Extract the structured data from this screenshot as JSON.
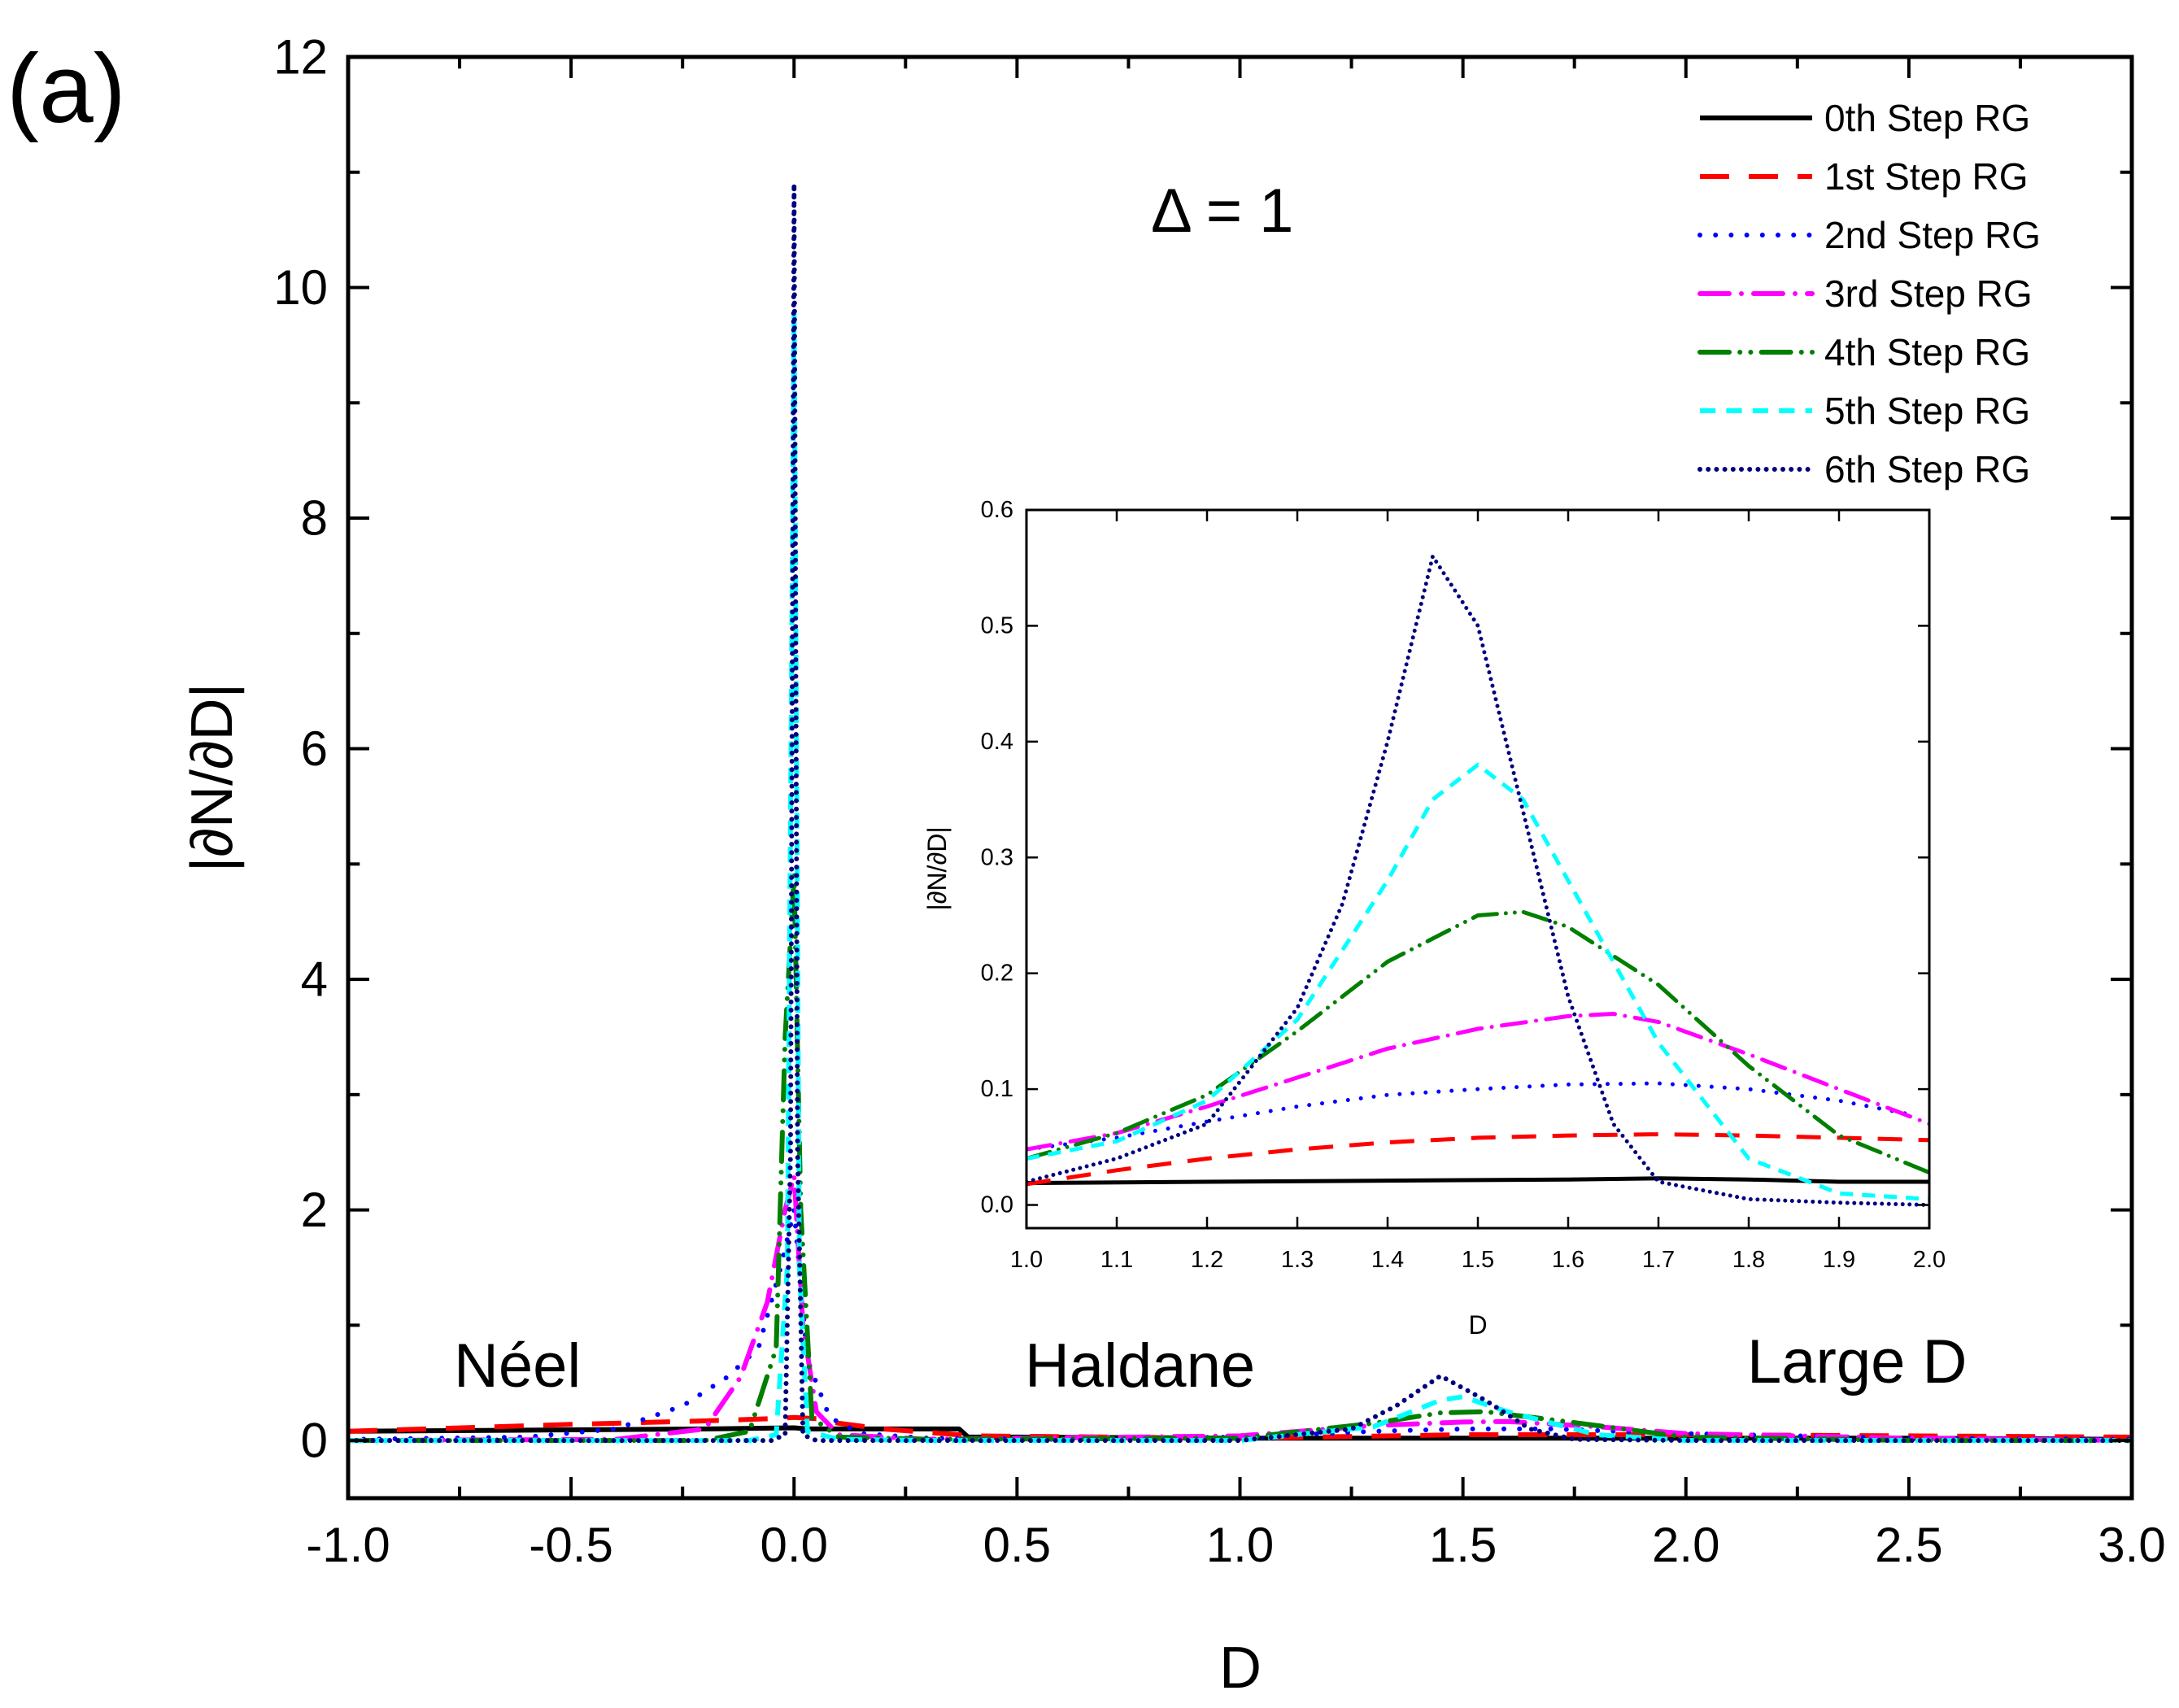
{
  "panel_label": "(a)",
  "annotation_delta": "Δ = 1",
  "phase_labels": [
    "Néel",
    "Haldane",
    "Large D"
  ],
  "colors": {
    "s0": "#000000",
    "s1": "#ff0000",
    "s2": "#0000ff",
    "s3": "#ff00ff",
    "s4": "#007f00",
    "s5": "#00ffff",
    "s6": "#00007f"
  },
  "chart_data": [
    {
      "id": "main",
      "type": "line",
      "title": "",
      "xlabel": "D",
      "ylabel": "|∂N/∂D|",
      "xlim": [
        -1.0,
        3.0
      ],
      "ylim": [
        -0.5,
        12
      ],
      "xticks": [
        -1.0,
        -0.5,
        0.0,
        0.5,
        1.0,
        1.5,
        2.0,
        2.5,
        3.0
      ],
      "xtick_labels": [
        "-1.0",
        "-0.5",
        "0.0",
        "0.5",
        "1.0",
        "1.5",
        "2.0",
        "2.5",
        "3.0"
      ],
      "yticks": [
        0,
        2,
        4,
        6,
        8,
        10,
        12
      ],
      "ytick_labels": [
        "0",
        "2",
        "4",
        "6",
        "8",
        "10",
        "12"
      ],
      "legend_position": "top-right",
      "series": [
        {
          "name": "0th  Step RG",
          "style": "solid",
          "color_key": "s0",
          "x": [
            -1.0,
            -0.6,
            -0.2,
            0.0,
            0.03,
            0.3,
            0.37,
            0.39,
            0.5,
            1.0,
            1.5,
            2.0,
            2.5,
            3.0
          ],
          "y": [
            0.08,
            0.09,
            0.1,
            0.11,
            0.1,
            0.1,
            0.1,
            0.03,
            0.03,
            0.02,
            0.02,
            0.02,
            0.02,
            0.01
          ]
        },
        {
          "name": "1st  Step RG",
          "style": "dash",
          "color_key": "s1",
          "x": [
            -1.0,
            -0.5,
            -0.2,
            -0.05,
            0.0,
            0.05,
            0.1,
            0.2,
            0.4,
            1.0,
            1.5,
            2.0,
            2.5,
            3.0
          ],
          "y": [
            0.08,
            0.14,
            0.17,
            0.19,
            0.2,
            0.19,
            0.15,
            0.1,
            0.04,
            0.02,
            0.05,
            0.05,
            0.04,
            0.03
          ]
        },
        {
          "name": "2nd Step RG",
          "style": "dot",
          "color_key": "s2",
          "x": [
            -1.0,
            -0.6,
            -0.4,
            -0.25,
            -0.15,
            -0.08,
            -0.03,
            0.0,
            0.03,
            0.08,
            0.15,
            0.3,
            0.6,
            1.0,
            1.3,
            1.5,
            1.7,
            2.0,
            2.5,
            3.0
          ],
          "y": [
            0.01,
            0.03,
            0.1,
            0.3,
            0.55,
            0.8,
            1.5,
            2.0,
            0.7,
            0.2,
            0.06,
            0.02,
            0.01,
            0.03,
            0.08,
            0.1,
            0.1,
            0.06,
            0.02,
            0.01
          ]
        },
        {
          "name": "3rd  Step RG",
          "style": "dashdot",
          "color_key": "s3",
          "x": [
            -1.0,
            -0.4,
            -0.2,
            -0.12,
            -0.06,
            -0.02,
            0.0,
            0.02,
            0.05,
            0.1,
            0.3,
            1.0,
            1.3,
            1.5,
            1.6,
            1.8,
            2.0,
            2.5,
            3.0
          ],
          "y": [
            0.0,
            0.01,
            0.1,
            0.55,
            1.2,
            2.0,
            2.3,
            1.0,
            0.25,
            0.05,
            0.01,
            0.04,
            0.13,
            0.16,
            0.165,
            0.12,
            0.06,
            0.02,
            0.0
          ]
        },
        {
          "name": "4th  Step RG",
          "style": "dashdotdot",
          "color_key": "s4",
          "x": [
            -1.0,
            -0.2,
            -0.1,
            -0.04,
            -0.02,
            0.0,
            0.015,
            0.04,
            0.1,
            0.3,
            1.0,
            1.3,
            1.45,
            1.55,
            1.7,
            2.0,
            2.5,
            3.0
          ],
          "y": [
            0.0,
            0.0,
            0.08,
            0.8,
            3.5,
            4.9,
            2.0,
            0.2,
            0.03,
            0.01,
            0.02,
            0.15,
            0.24,
            0.25,
            0.18,
            0.03,
            0.0,
            0.0
          ]
        },
        {
          "name": "5th  Step RG",
          "style": "shortdash",
          "color_key": "s5",
          "x": [
            -1.0,
            -0.1,
            -0.04,
            -0.015,
            0.0,
            0.012,
            0.03,
            0.1,
            0.3,
            1.0,
            1.3,
            1.45,
            1.5,
            1.6,
            1.8,
            2.0,
            2.5,
            3.0
          ],
          "y": [
            0.0,
            0.0,
            0.05,
            1.5,
            9.8,
            1.5,
            0.08,
            0.01,
            0.0,
            0.0,
            0.12,
            0.35,
            0.38,
            0.25,
            0.05,
            0.0,
            0.0,
            0.0
          ]
        },
        {
          "name": "6th  Step RG",
          "style": "densedot",
          "color_key": "s6",
          "x": [
            -1.0,
            -0.05,
            -0.02,
            -0.008,
            0.0,
            0.008,
            0.02,
            0.05,
            1.0,
            1.25,
            1.35,
            1.45,
            1.55,
            1.65,
            1.75,
            2.0,
            3.0
          ],
          "y": [
            0.0,
            0.0,
            0.05,
            2.5,
            10.9,
            2.5,
            0.05,
            0.0,
            0.0,
            0.1,
            0.3,
            0.56,
            0.35,
            0.1,
            0.01,
            0.0,
            0.0
          ]
        }
      ]
    },
    {
      "id": "inset",
      "type": "line",
      "title": "",
      "xlabel": "D",
      "ylabel": "|∂N/∂D|",
      "xlim": [
        1.0,
        2.0
      ],
      "ylim": [
        -0.02,
        0.6
      ],
      "xticks": [
        1.0,
        1.1,
        1.2,
        1.3,
        1.4,
        1.5,
        1.6,
        1.7,
        1.8,
        1.9,
        2.0
      ],
      "xtick_labels": [
        "1.0",
        "1.1",
        "1.2",
        "1.3",
        "1.4",
        "1.5",
        "1.6",
        "1.7",
        "1.8",
        "1.9",
        "2.0"
      ],
      "yticks": [
        0.0,
        0.1,
        0.2,
        0.3,
        0.4,
        0.5,
        0.6
      ],
      "ytick_labels": [
        "0.0",
        "0.1",
        "0.2",
        "0.3",
        "0.4",
        "0.5",
        "0.6"
      ],
      "series": [
        {
          "name": "0th  Step RG",
          "style": "solid",
          "color_key": "s0",
          "x": [
            1.0,
            1.2,
            1.4,
            1.6,
            1.7,
            1.8,
            1.9,
            2.0
          ],
          "y": [
            0.019,
            0.02,
            0.021,
            0.022,
            0.023,
            0.022,
            0.02,
            0.02
          ]
        },
        {
          "name": "1st  Step RG",
          "style": "dash",
          "color_key": "s1",
          "x": [
            1.0,
            1.1,
            1.2,
            1.3,
            1.4,
            1.5,
            1.6,
            1.7,
            1.8,
            1.9,
            2.0
          ],
          "y": [
            0.018,
            0.03,
            0.04,
            0.048,
            0.054,
            0.058,
            0.06,
            0.061,
            0.06,
            0.058,
            0.056
          ]
        },
        {
          "name": "2nd Step RG",
          "style": "dot",
          "color_key": "s2",
          "x": [
            1.0,
            1.1,
            1.2,
            1.3,
            1.4,
            1.5,
            1.6,
            1.7,
            1.8,
            1.9,
            1.98
          ],
          "y": [
            0.048,
            0.058,
            0.072,
            0.085,
            0.095,
            0.1,
            0.104,
            0.105,
            0.1,
            0.09,
            0.078
          ]
        },
        {
          "name": "3rd  Step RG",
          "style": "dashdot",
          "color_key": "s3",
          "x": [
            1.0,
            1.1,
            1.2,
            1.3,
            1.4,
            1.5,
            1.6,
            1.65,
            1.7,
            1.8,
            1.9,
            2.0
          ],
          "y": [
            0.048,
            0.062,
            0.085,
            0.11,
            0.135,
            0.152,
            0.163,
            0.165,
            0.158,
            0.13,
            0.1,
            0.07
          ]
        },
        {
          "name": "4th  Step RG",
          "style": "dashdotdot",
          "color_key": "s4",
          "x": [
            1.0,
            1.1,
            1.2,
            1.3,
            1.4,
            1.5,
            1.55,
            1.6,
            1.7,
            1.8,
            1.9,
            2.0
          ],
          "y": [
            0.04,
            0.062,
            0.095,
            0.15,
            0.21,
            0.25,
            0.253,
            0.24,
            0.19,
            0.12,
            0.06,
            0.028
          ]
        },
        {
          "name": "5th  Step RG",
          "style": "shortdash",
          "color_key": "s5",
          "x": [
            1.0,
            1.1,
            1.2,
            1.3,
            1.4,
            1.45,
            1.5,
            1.55,
            1.6,
            1.7,
            1.8,
            1.9,
            2.0
          ],
          "y": [
            0.04,
            0.055,
            0.09,
            0.16,
            0.28,
            0.35,
            0.38,
            0.35,
            0.28,
            0.14,
            0.04,
            0.01,
            0.005
          ]
        },
        {
          "name": "6th  Step RG",
          "style": "densedot",
          "color_key": "s6",
          "x": [
            1.0,
            1.1,
            1.2,
            1.3,
            1.35,
            1.4,
            1.45,
            1.5,
            1.55,
            1.6,
            1.65,
            1.7,
            1.8,
            1.9,
            2.0
          ],
          "y": [
            0.02,
            0.04,
            0.07,
            0.17,
            0.26,
            0.4,
            0.56,
            0.5,
            0.34,
            0.18,
            0.07,
            0.02,
            0.005,
            0.002,
            0.0
          ]
        }
      ]
    }
  ]
}
